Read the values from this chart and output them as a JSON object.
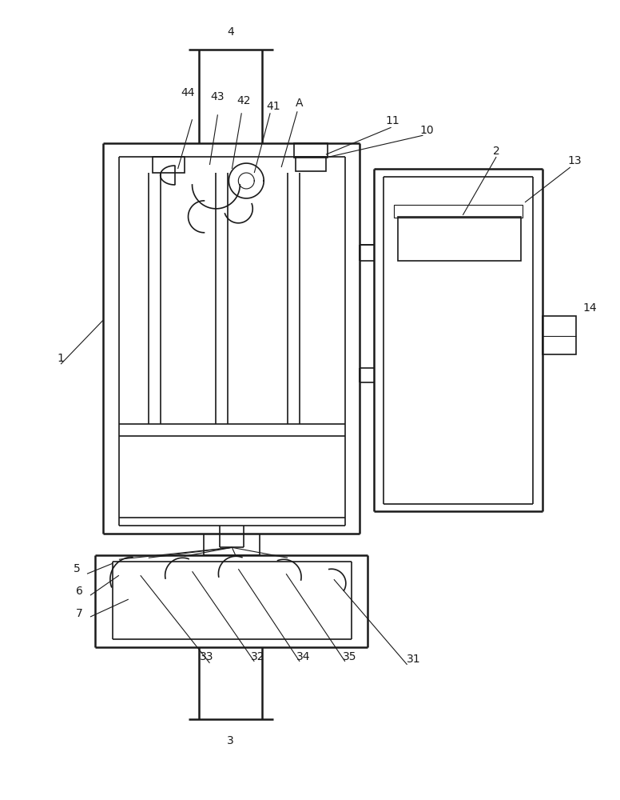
{
  "bg_color": "#ffffff",
  "line_color": "#1a1a1a",
  "lw_thick": 1.8,
  "lw_med": 1.2,
  "lw_thin": 0.8,
  "fig_width": 7.76,
  "fig_height": 10.0
}
